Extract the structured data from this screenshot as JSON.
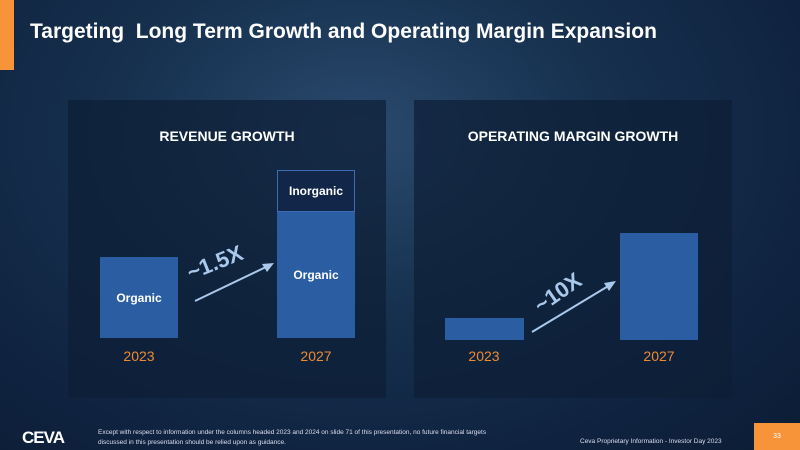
{
  "title": "Targeting  Long Term Growth and Operating Margin Expansion",
  "colors": {
    "accent": "#f7943a",
    "bar": "#2a5da2",
    "year": "#f08a30"
  },
  "revenue": {
    "title": "REVENUE GROWTH",
    "multiplier": "~1.5X",
    "bars": [
      {
        "year": "2023",
        "segments": [
          "Organic"
        ]
      },
      {
        "year": "2027",
        "segments": [
          "Organic",
          "Inorganic"
        ]
      }
    ]
  },
  "margin": {
    "title": "OPERATING MARGIN  GROWTH",
    "multiplier": "~10X",
    "bars": [
      {
        "year": "2023"
      },
      {
        "year": "2027"
      }
    ]
  },
  "footer": {
    "logo": "CEVA",
    "disclaimer_1": "Except with respect to information under the columns headed 2023 and 2024 on slide 71 of this presentation, no future financial targets",
    "disclaimer_2": "discussed in this presentation should be relied upon as guidance.",
    "proprietary": "Ceva Proprietary Information  -  Investor Day 2023",
    "page": "33"
  }
}
